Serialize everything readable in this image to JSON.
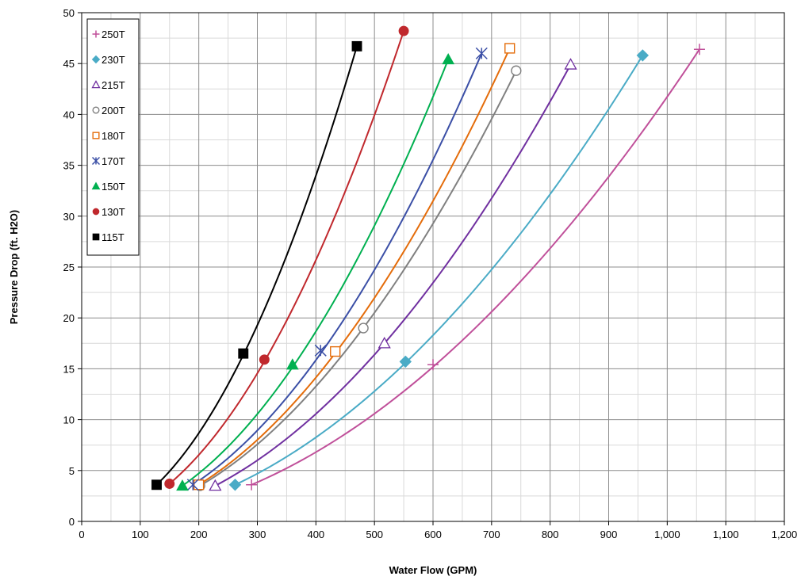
{
  "chart_data": {
    "type": "scatter",
    "title": "",
    "xlabel": "Water Flow (GPM)",
    "ylabel": "Pressure Drop (ft. H2O)",
    "xlim": [
      0,
      1200
    ],
    "ylim": [
      0,
      50
    ],
    "x_ticks": [
      0,
      100,
      200,
      300,
      400,
      500,
      600,
      700,
      800,
      900,
      1000,
      1100,
      1200
    ],
    "x_tick_labels": [
      "0",
      "100",
      "200",
      "300",
      "400",
      "500",
      "600",
      "700",
      "800",
      "900",
      "1,000",
      "1,100",
      "1,200"
    ],
    "y_ticks": [
      0,
      5,
      10,
      15,
      20,
      25,
      30,
      35,
      40,
      45,
      50
    ],
    "y_tick_labels": [
      "0",
      "5",
      "10",
      "15",
      "20",
      "25",
      "30",
      "35",
      "40",
      "45",
      "50"
    ],
    "x_minor_step": 50,
    "y_minor_step": 2.5,
    "grid": true,
    "legend_position": "top-left",
    "trendline": "power fit",
    "series": [
      {
        "name": "250T",
        "color": "#c0509a",
        "marker": "plus",
        "x": [
          290,
          600,
          1055
        ],
        "y": [
          3.6,
          15.4,
          46.4
        ]
      },
      {
        "name": "230T",
        "color": "#4aabc6",
        "marker": "diamond",
        "x": [
          262,
          553,
          958
        ],
        "y": [
          3.6,
          15.7,
          45.8
        ]
      },
      {
        "name": "215T",
        "color": "#7030a0",
        "marker": "triangle-open",
        "x": [
          228,
          517,
          835
        ],
        "y": [
          3.5,
          17.5,
          44.9
        ]
      },
      {
        "name": "200T",
        "color": "#808080",
        "marker": "circle-open",
        "x": [
          202,
          481,
          742
        ],
        "y": [
          3.5,
          19.0,
          44.3
        ]
      },
      {
        "name": "180T",
        "color": "#e46c0a",
        "marker": "square-open",
        "x": [
          200,
          433,
          731
        ],
        "y": [
          3.6,
          16.7,
          46.5
        ]
      },
      {
        "name": "170T",
        "color": "#3b4fa6",
        "marker": "asterisk",
        "x": [
          190,
          408,
          683
        ],
        "y": [
          3.6,
          16.8,
          46.0
        ]
      },
      {
        "name": "150T",
        "color": "#00b050",
        "marker": "triangle",
        "x": [
          172,
          360,
          626
        ],
        "y": [
          3.5,
          15.4,
          45.4
        ]
      },
      {
        "name": "130T",
        "color": "#c0282d",
        "marker": "circle",
        "x": [
          150,
          312,
          550
        ],
        "y": [
          3.7,
          15.9,
          48.2
        ]
      },
      {
        "name": "115T",
        "color": "#000000",
        "marker": "square",
        "x": [
          128,
          276,
          470
        ],
        "y": [
          3.6,
          16.5,
          46.7
        ]
      }
    ]
  }
}
